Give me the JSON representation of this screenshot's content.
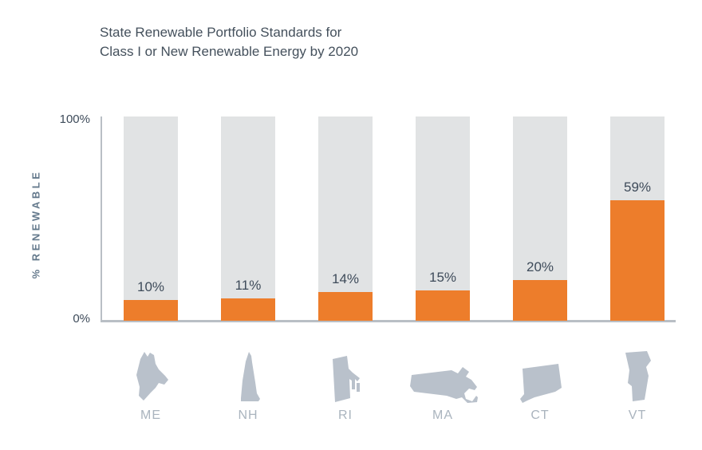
{
  "chart_data": {
    "type": "bar",
    "title": "State Renewable Portfolio Standards for Class I or New Renewable Energy by 2020",
    "title_lines": [
      "State Renewable Portfolio Standards for",
      "Class I or New Renewable Energy by 2020"
    ],
    "ylabel": "% RENEWABLE",
    "yticks": {
      "top": "100%",
      "bottom": "0%"
    },
    "ylim": [
      0,
      100
    ],
    "grid": false,
    "legend": "none",
    "categories": [
      "ME",
      "NH",
      "RI",
      "MA",
      "CT",
      "VT"
    ],
    "values": [
      10,
      11,
      14,
      15,
      20,
      59
    ],
    "value_labels": [
      "10%",
      "11%",
      "14%",
      "15%",
      "20%",
      "59%"
    ],
    "icons": [
      "maine-state-icon",
      "new-hampshire-state-icon",
      "rhode-island-state-icon",
      "massachusetts-state-icon",
      "connecticut-state-icon",
      "vermont-state-icon"
    ],
    "colors": {
      "bar_fill": "#ED7D2B",
      "bar_track": "#E1E3E4",
      "axis": "#B9BFC5",
      "value_label": "#3E4B5A",
      "title": "#44505C",
      "ylabel": "#64798C",
      "tick": "#3E4B5A",
      "state_icon": "#B9C1CB",
      "state_label": "#AAB4BE"
    }
  }
}
